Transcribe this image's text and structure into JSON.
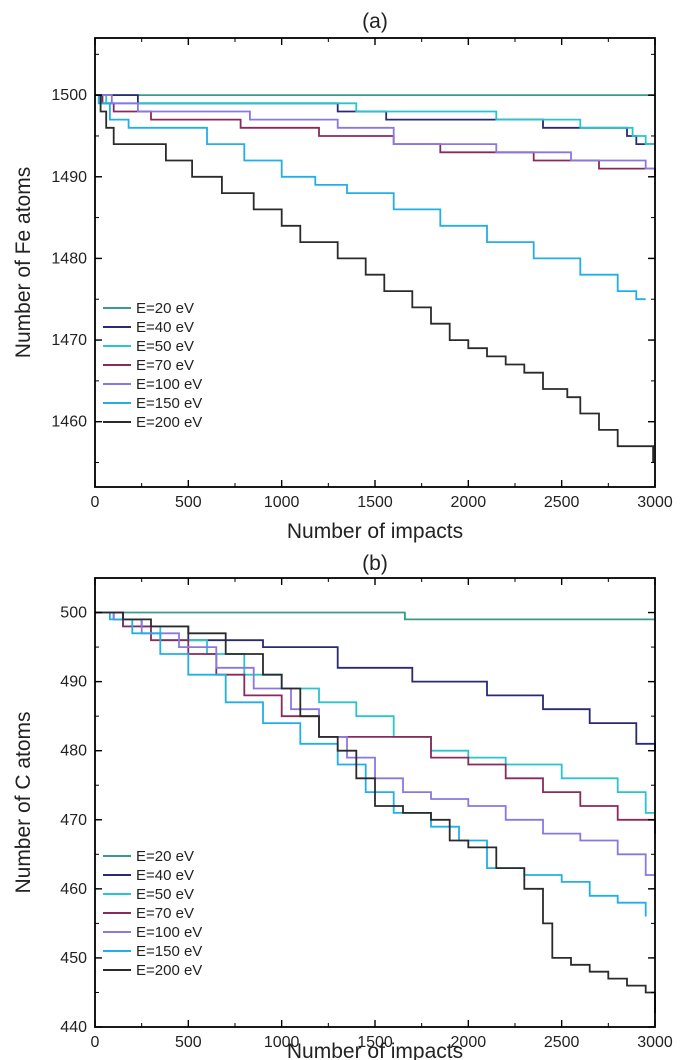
{
  "chart_data": [
    {
      "type": "line",
      "title": "(a)",
      "xlabel": "Number of impacts",
      "ylabel": "Number of Fe atoms",
      "xlim": [
        0,
        3000
      ],
      "ylim": [
        1452,
        1507
      ],
      "xticks": [
        0,
        500,
        1000,
        1500,
        2000,
        2500,
        3000
      ],
      "yticks": [
        1460,
        1470,
        1480,
        1490,
        1500
      ],
      "legend_position": "bottom-left",
      "grid": false,
      "series": [
        {
          "name": "E=20 eV",
          "color": "#3a9a8c",
          "x": [
            0,
            3000
          ],
          "y": [
            1500,
            1500
          ]
        },
        {
          "name": "E=40 eV",
          "color": "#2a2a72",
          "x": [
            0,
            230,
            1300,
            1560,
            2400,
            2850,
            2900,
            3000
          ],
          "y": [
            1500,
            1499,
            1498,
            1497,
            1496,
            1495,
            1494,
            1494
          ]
        },
        {
          "name": "E=50 eV",
          "color": "#2ac4cc",
          "x": [
            0,
            60,
            1400,
            2150,
            2600,
            2880,
            2950,
            3000
          ],
          "y": [
            1500,
            1499,
            1498,
            1497,
            1496,
            1495,
            1494,
            1494
          ]
        },
        {
          "name": "E=70 eV",
          "color": "#8a2a5a",
          "x": [
            0,
            40,
            100,
            300,
            780,
            1200,
            1600,
            1850,
            2350,
            2700,
            3000
          ],
          "y": [
            1500,
            1499,
            1498,
            1497,
            1496,
            1495,
            1494,
            1493,
            1492,
            1491,
            1490
          ]
        },
        {
          "name": "E=100 eV",
          "color": "#8a78e0",
          "x": [
            0,
            90,
            230,
            830,
            1300,
            1600,
            2150,
            2550,
            2950,
            3000
          ],
          "y": [
            1500,
            1499,
            1498,
            1497,
            1496,
            1494,
            1493,
            1492,
            1491,
            1491
          ]
        },
        {
          "name": "E=150 eV",
          "color": "#22aee8",
          "x": [
            0,
            20,
            80,
            180,
            600,
            800,
            1000,
            1180,
            1350,
            1600,
            1850,
            2100,
            2350,
            2600,
            2800,
            2900,
            2950
          ],
          "y": [
            1500,
            1499,
            1497,
            1496,
            1494,
            1492,
            1490,
            1489,
            1488,
            1486,
            1484,
            1482,
            1480,
            1478,
            1476,
            1475,
            1475
          ]
        },
        {
          "name": "E=200 eV",
          "color": "#2b2b2b",
          "x": [
            0,
            30,
            60,
            100,
            380,
            520,
            680,
            850,
            1000,
            1100,
            1300,
            1450,
            1550,
            1700,
            1800,
            1900,
            2000,
            2100,
            2200,
            2300,
            2400,
            2530,
            2600,
            2700,
            2800,
            2900,
            2990
          ],
          "y": [
            1500,
            1498,
            1496,
            1494,
            1492,
            1490,
            1488,
            1486,
            1484,
            1482,
            1480,
            1478,
            1476,
            1474,
            1472,
            1470,
            1469,
            1468,
            1467,
            1466,
            1464,
            1463,
            1461,
            1459,
            1457,
            1457,
            1455
          ]
        }
      ]
    },
    {
      "type": "line",
      "title": "(b)",
      "xlabel": "Number of impacts",
      "ylabel": "Number of C atoms",
      "xlim": [
        0,
        3000
      ],
      "ylim": [
        440,
        505
      ],
      "xticks": [
        0,
        500,
        1000,
        1500,
        2000,
        2500,
        3000
      ],
      "yticks": [
        440,
        450,
        460,
        470,
        480,
        490,
        500
      ],
      "legend_position": "bottom-left",
      "grid": false,
      "series": [
        {
          "name": "E=20 eV",
          "color": "#3a9a8c",
          "x": [
            0,
            1660,
            3000
          ],
          "y": [
            500,
            499,
            499
          ]
        },
        {
          "name": "E=40 eV",
          "color": "#2a2a72",
          "x": [
            0,
            100,
            250,
            500,
            900,
            1300,
            1700,
            2100,
            2400,
            2650,
            2900,
            3000
          ],
          "y": [
            500,
            499,
            498,
            496,
            495,
            492,
            490,
            488,
            486,
            484,
            481,
            480
          ]
        },
        {
          "name": "E=50 eV",
          "color": "#2ac4cc",
          "x": [
            0,
            150,
            350,
            600,
            800,
            1000,
            1200,
            1400,
            1600,
            1800,
            2000,
            2200,
            2500,
            2800,
            2950,
            3000
          ],
          "y": [
            500,
            498,
            496,
            494,
            491,
            489,
            487,
            485,
            482,
            480,
            479,
            478,
            476,
            474,
            471,
            471
          ]
        },
        {
          "name": "E=70 eV",
          "color": "#8a2a5a",
          "x": [
            0,
            150,
            300,
            500,
            650,
            800,
            1000,
            1200,
            1600,
            1800,
            2000,
            2200,
            2400,
            2600,
            2800,
            3000
          ],
          "y": [
            500,
            498,
            496,
            494,
            491,
            488,
            485,
            482,
            482,
            479,
            478,
            476,
            474,
            472,
            470,
            468
          ]
        },
        {
          "name": "E=100 eV",
          "color": "#8a78e0",
          "x": [
            0,
            100,
            250,
            450,
            650,
            850,
            1050,
            1200,
            1350,
            1500,
            1650,
            1800,
            2000,
            2200,
            2400,
            2600,
            2800,
            2950,
            3000
          ],
          "y": [
            500,
            499,
            497,
            495,
            492,
            489,
            486,
            482,
            479,
            476,
            474,
            473,
            472,
            470,
            468,
            467,
            465,
            462,
            462
          ]
        },
        {
          "name": "E=150 eV",
          "color": "#22aee8",
          "x": [
            0,
            80,
            200,
            350,
            500,
            700,
            900,
            1100,
            1300,
            1450,
            1600,
            1800,
            1950,
            2100,
            2300,
            2500,
            2650,
            2800,
            2950
          ],
          "y": [
            500,
            499,
            497,
            494,
            491,
            487,
            484,
            481,
            478,
            474,
            471,
            469,
            467,
            463,
            462,
            461,
            459,
            458,
            456
          ]
        },
        {
          "name": "E=200 eV",
          "color": "#2b2b2b",
          "x": [
            0,
            50,
            150,
            300,
            500,
            700,
            900,
            1000,
            1100,
            1200,
            1300,
            1400,
            1500,
            1650,
            1800,
            1900,
            2000,
            2150,
            2300,
            2400,
            2450,
            2550,
            2650,
            2750,
            2850,
            2950,
            3000
          ],
          "y": [
            500,
            500,
            499,
            498,
            497,
            494,
            491,
            489,
            485,
            482,
            480,
            476,
            472,
            471,
            470,
            467,
            466,
            463,
            460,
            455,
            450,
            449,
            448,
            447,
            446,
            445,
            442
          ]
        }
      ]
    }
  ]
}
